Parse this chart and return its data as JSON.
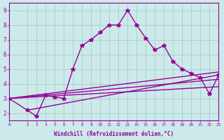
{
  "xlabel": "Windchill (Refroidissement éolien,°C)",
  "ylabel": "",
  "bg_color": "#cceaea",
  "grid_color": "#aacccc",
  "line_color": "#990099",
  "xlim": [
    0,
    23
  ],
  "ylim": [
    1.5,
    9.5
  ],
  "yticks": [
    2,
    3,
    4,
    5,
    6,
    7,
    8,
    9
  ],
  "xticks": [
    0,
    2,
    3,
    4,
    5,
    6,
    7,
    8,
    9,
    10,
    11,
    12,
    13,
    14,
    15,
    16,
    17,
    18,
    19,
    20,
    21,
    22,
    23
  ],
  "series": [
    {
      "x": [
        0,
        2,
        3,
        4,
        5,
        6,
        7,
        8,
        9,
        10,
        11,
        12,
        13,
        14,
        15,
        16,
        17,
        18,
        19,
        20,
        21,
        22,
        23
      ],
      "y": [
        3.0,
        2.2,
        1.8,
        3.2,
        3.1,
        3.0,
        5.0,
        6.6,
        7.0,
        7.5,
        8.0,
        8.0,
        9.0,
        8.0,
        7.1,
        6.3,
        6.6,
        5.5,
        5.0,
        4.7,
        4.4,
        3.3,
        4.6
      ],
      "marker": "*",
      "ms": 4,
      "lw": 1.0
    },
    {
      "x": [
        0,
        23
      ],
      "y": [
        3.0,
        4.8
      ],
      "marker": null,
      "ms": 0,
      "lw": 1.0
    },
    {
      "x": [
        0,
        23
      ],
      "y": [
        3.0,
        4.3
      ],
      "marker": null,
      "ms": 0,
      "lw": 1.0
    },
    {
      "x": [
        0,
        23
      ],
      "y": [
        3.0,
        3.8
      ],
      "marker": null,
      "ms": 0,
      "lw": 1.0
    },
    {
      "x": [
        2,
        23
      ],
      "y": [
        2.2,
        4.6
      ],
      "marker": null,
      "ms": 0,
      "lw": 1.0
    }
  ]
}
